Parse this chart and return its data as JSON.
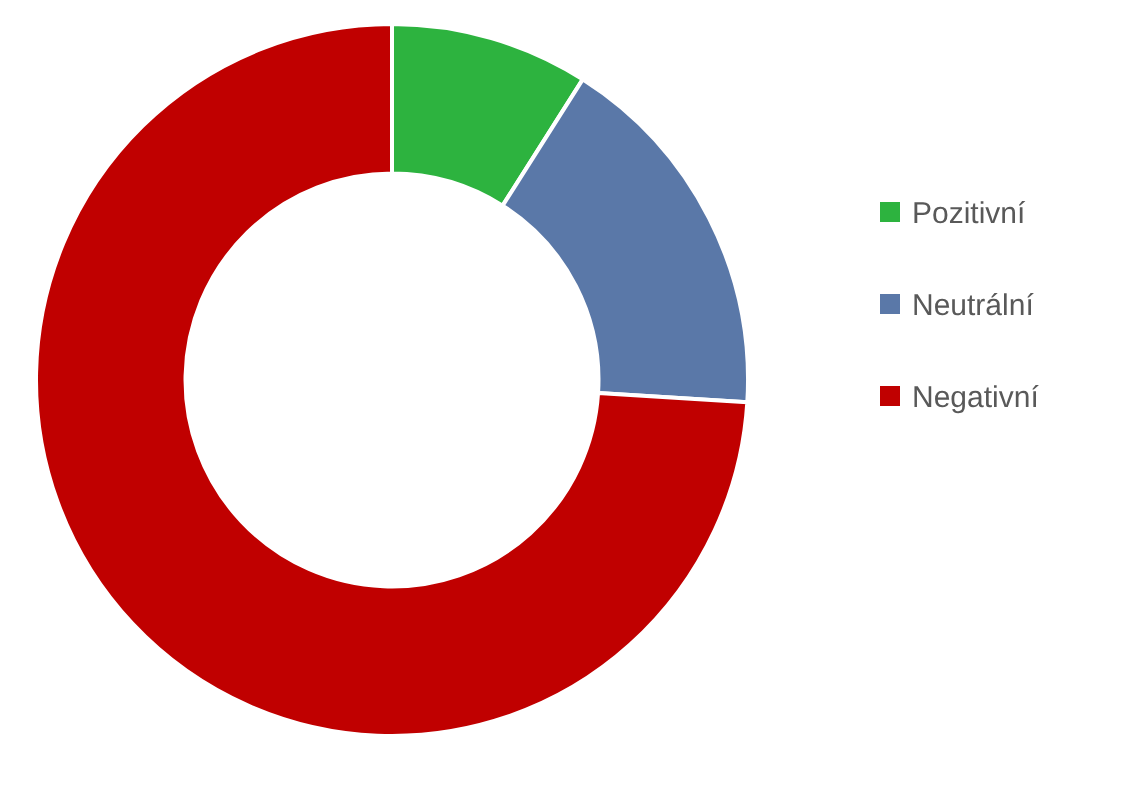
{
  "chart_data": {
    "type": "donut",
    "categories": [
      "Pozitivní",
      "Neutrální",
      "Negativní"
    ],
    "values": [
      9,
      17,
      74
    ],
    "colors": [
      "#2db33f",
      "#5a78a8",
      "#c00000"
    ],
    "legend": "right"
  }
}
